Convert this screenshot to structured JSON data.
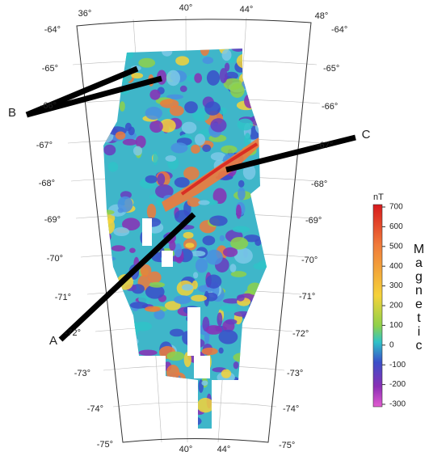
{
  "map": {
    "lon_labels_top": [
      "36°",
      "40°",
      "44°",
      "48°"
    ],
    "lon_labels_bottom": [
      "40°",
      "44°"
    ],
    "lat_labels_left": [
      "-64°",
      "-65°",
      "-66°",
      "-67°",
      "-68°",
      "-69°",
      "-70°",
      "-71°",
      "-72°",
      "-73°",
      "-74°",
      "-75°"
    ],
    "lat_labels_right": [
      "-64°",
      "-65°",
      "-66°",
      "-67°",
      "-68°",
      "-69°",
      "-70°",
      "-71°",
      "-72°",
      "-73°",
      "-74°",
      "-75°"
    ],
    "annotations": [
      "A",
      "B",
      "C"
    ]
  },
  "colorbar": {
    "unit": "nT",
    "label": "Magnetic",
    "lim": [
      -300,
      700
    ],
    "ticks": [
      700,
      600,
      500,
      400,
      300,
      200,
      100,
      0,
      -100,
      -200,
      -300
    ]
  }
}
